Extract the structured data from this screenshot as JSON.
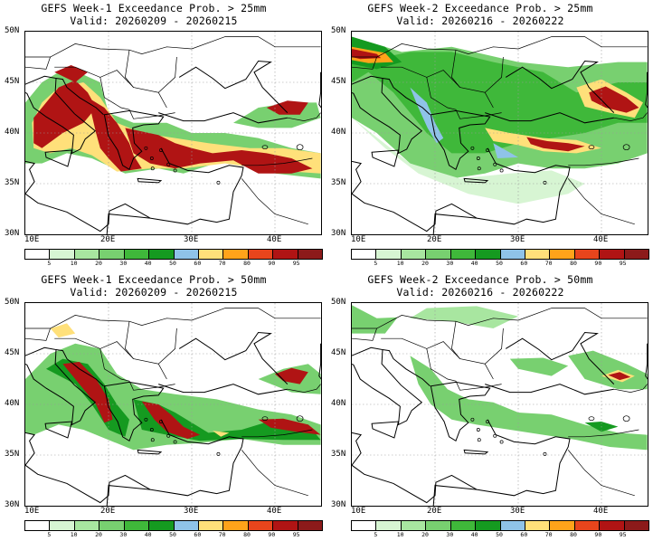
{
  "panels": [
    {
      "title_line1": "GEFS Week-1 Exceedance Prob. > 25mm",
      "title_line2": "Valid: 20260209 - 20260215"
    },
    {
      "title_line1": "GEFS Week-2 Exceedance Prob. > 25mm",
      "title_line2": "Valid: 20260216 - 20260222"
    },
    {
      "title_line1": "GEFS Week-1 Exceedance Prob. > 50mm",
      "title_line2": "Valid: 20260209 - 20260215"
    },
    {
      "title_line1": "GEFS Week-2 Exceedance Prob. > 50mm",
      "title_line2": "Valid: 20260216 - 20260222"
    }
  ],
  "lat_labels": [
    "50N",
    "45N",
    "40N",
    "35N",
    "30N"
  ],
  "lon_labels": [
    "10E",
    "20E",
    "30E",
    "40E"
  ],
  "colorbar": {
    "labels": [
      "5",
      "10",
      "20",
      "30",
      "40",
      "50",
      "60",
      "70",
      "80",
      "90",
      "95"
    ],
    "colors": [
      "#ffffff",
      "#d7f5d3",
      "#a8e6a0",
      "#78d070",
      "#3fb83a",
      "#159a20",
      "#8fc3e8",
      "#ffe07a",
      "#ffa31a",
      "#e8451c",
      "#b01414",
      "#8c1a1a"
    ]
  }
}
